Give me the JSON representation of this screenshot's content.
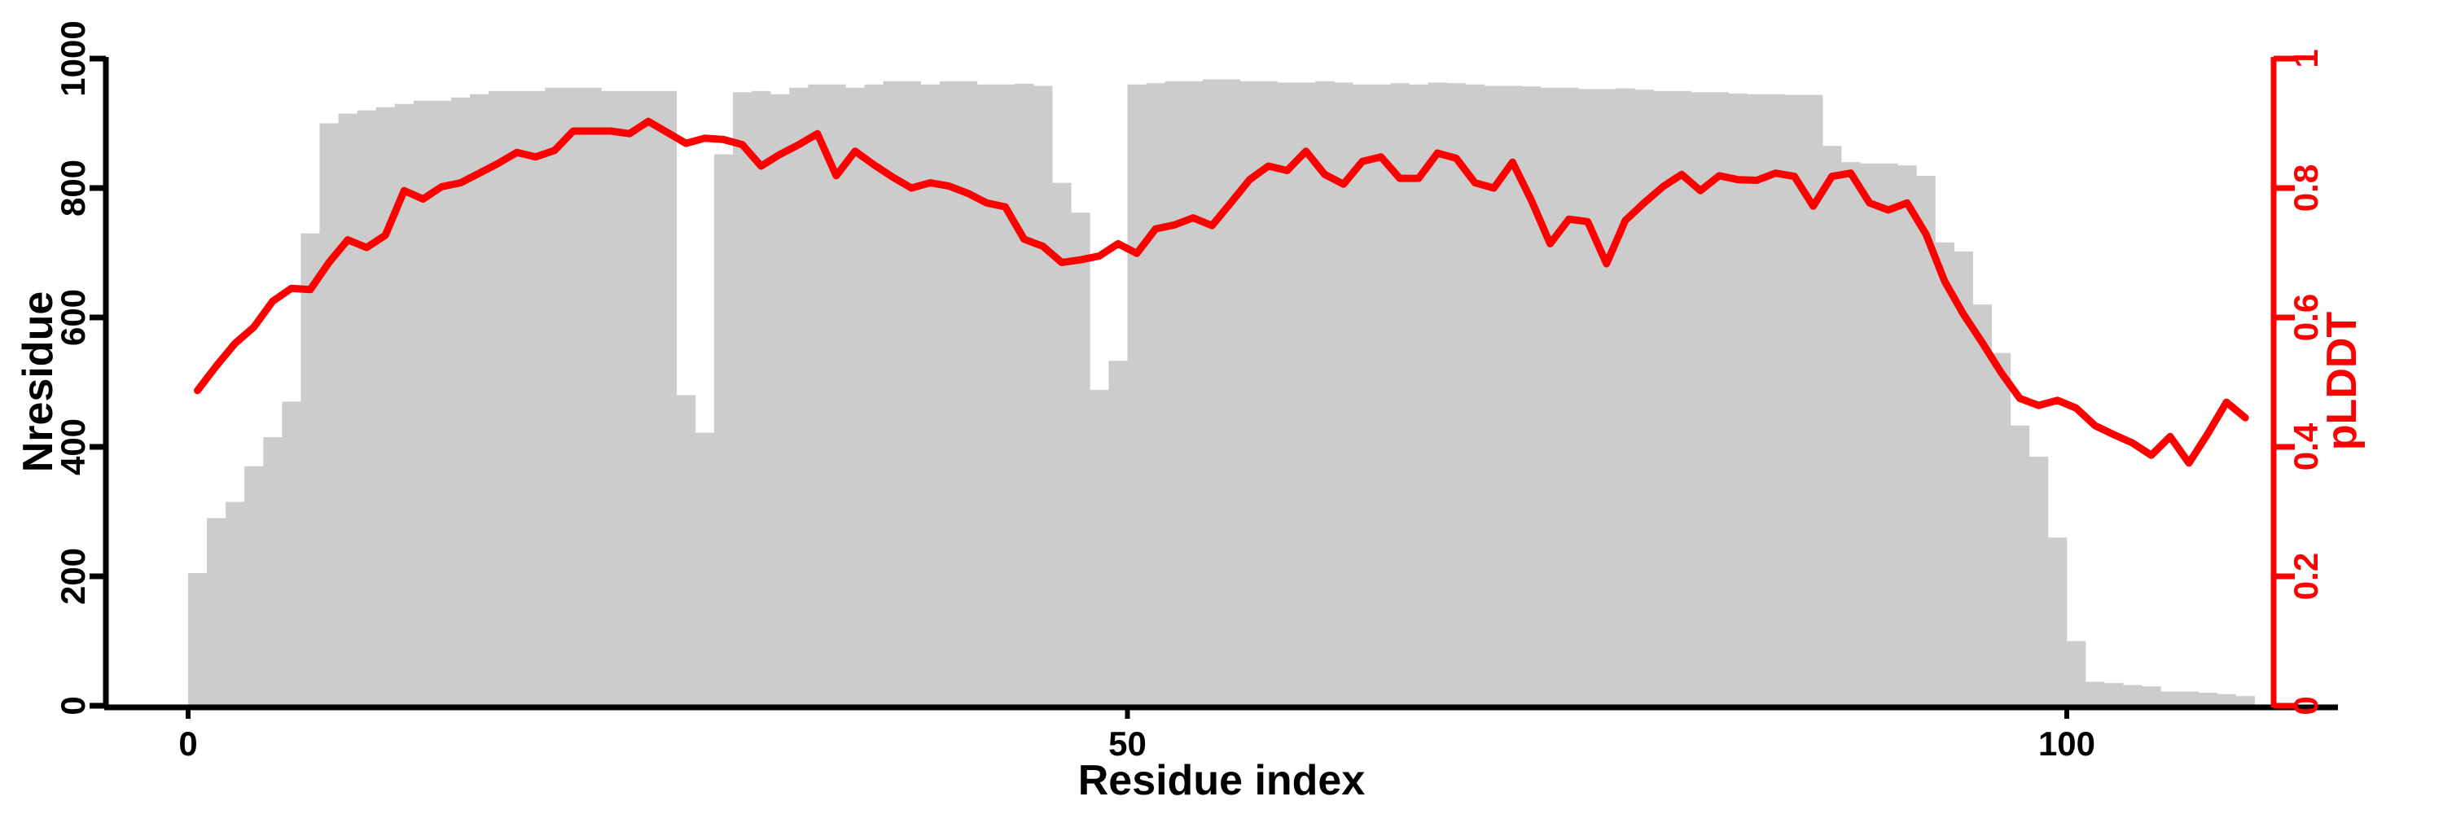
{
  "figure": {
    "background": "#ffffff"
  },
  "chart_data": {
    "type": "bar",
    "subtype": "histogram-with-line-dual-axis",
    "title": "",
    "xlabel": "Residue index",
    "ylabel_left": "Nresidue",
    "ylabel_right": "pLDDT",
    "x_ticks": [
      "0",
      "50",
      "100"
    ],
    "x_tick_values": [
      0,
      50,
      100
    ],
    "xlim": [
      0,
      111
    ],
    "ylim_left": [
      0,
      1000
    ],
    "y_ticks_left": [
      "0",
      "200",
      "400",
      "600",
      "800",
      "1000"
    ],
    "y_tick_values_left": [
      0,
      200,
      400,
      600,
      800,
      1000
    ],
    "ylim_right": [
      0,
      1
    ],
    "y_ticks_right": [
      "0",
      "0.2",
      "0.4",
      "0.6",
      "0.8",
      "1"
    ],
    "y_tick_values_right": [
      0,
      0.2,
      0.4,
      0.6,
      0.8,
      1
    ],
    "bar_color": "#cccccc",
    "line_color": "#ff0000",
    "axis_color": "#000000",
    "grid": false,
    "legend": "none",
    "n_bins": 110,
    "bin_width": 1,
    "categories_note": "residue index bins 0..109, bars sit edge-to-edge, line points at bin centers",
    "series": [
      {
        "name": "Nresidue",
        "type": "bar",
        "axis": "left",
        "values": [
          205,
          290,
          315,
          370,
          415,
          470,
          730,
          900,
          915,
          920,
          925,
          930,
          935,
          935,
          940,
          945,
          950,
          950,
          950,
          955,
          955,
          955,
          950,
          950,
          950,
          950,
          480,
          422,
          852,
          948,
          950,
          945,
          955,
          960,
          960,
          955,
          960,
          965,
          965,
          960,
          965,
          965,
          960,
          960,
          961,
          958,
          808,
          762,
          488,
          533,
          960,
          962,
          965,
          965,
          968,
          968,
          965,
          965,
          963,
          963,
          965,
          963,
          960,
          960,
          962,
          960,
          963,
          962,
          960,
          958,
          958,
          957,
          955,
          955,
          953,
          953,
          954,
          952,
          950,
          950,
          948,
          948,
          946,
          945,
          945,
          944,
          944,
          865,
          840,
          838,
          838,
          835,
          819,
          716,
          702,
          620,
          545,
          433,
          385,
          260,
          100,
          37,
          35,
          32,
          30,
          22,
          22,
          20,
          18,
          15
        ]
      },
      {
        "name": "pLDDT",
        "type": "line",
        "axis": "right",
        "values": [
          0.487,
          0.525,
          0.56,
          0.585,
          0.625,
          0.645,
          0.643,
          0.685,
          0.72,
          0.708,
          0.727,
          0.796,
          0.783,
          0.802,
          0.808,
          0.823,
          0.838,
          0.855,
          0.848,
          0.858,
          0.888,
          0.888,
          0.888,
          0.884,
          0.903,
          0.886,
          0.869,
          0.877,
          0.875,
          0.867,
          0.834,
          0.852,
          0.867,
          0.884,
          0.819,
          0.857,
          0.836,
          0.817,
          0.8,
          0.808,
          0.803,
          0.792,
          0.777,
          0.771,
          0.721,
          0.71,
          0.685,
          0.689,
          0.695,
          0.714,
          0.699,
          0.737,
          0.743,
          0.754,
          0.742,
          0.777,
          0.813,
          0.834,
          0.827,
          0.857,
          0.821,
          0.806,
          0.841,
          0.848,
          0.815,
          0.815,
          0.854,
          0.846,
          0.808,
          0.8,
          0.84,
          0.781,
          0.714,
          0.752,
          0.748,
          0.683,
          0.75,
          0.777,
          0.802,
          0.821,
          0.796,
          0.819,
          0.813,
          0.812,
          0.823,
          0.818,
          0.772,
          0.818,
          0.823,
          0.777,
          0.766,
          0.777,
          0.729,
          0.656,
          0.605,
          0.561,
          0.515,
          0.475,
          0.464,
          0.472,
          0.46,
          0.433,
          0.419,
          0.406,
          0.387,
          0.416,
          0.375,
          0.42,
          0.469,
          0.445
        ]
      }
    ]
  }
}
